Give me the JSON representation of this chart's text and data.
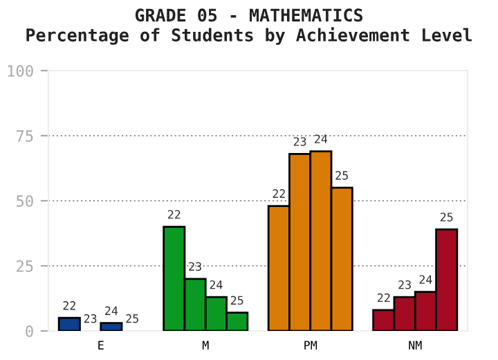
{
  "chart_data": {
    "type": "bar",
    "title": "GRADE 05 - MATHEMATICS",
    "subtitle": "Percentage of Students by Achievement Level",
    "categories": [
      "E",
      "M",
      "PM",
      "NM"
    ],
    "series": [
      {
        "name": "22",
        "colors": [
          "#0d3f8c",
          "#0a9a23",
          "#d97c07",
          "#a50a23"
        ],
        "values": [
          5,
          40,
          48,
          8
        ]
      },
      {
        "name": "23",
        "colors": [
          "#0d3f8c",
          "#0a9a23",
          "#d97c07",
          "#a50a23"
        ],
        "values": [
          0,
          20,
          68,
          13
        ]
      },
      {
        "name": "24",
        "colors": [
          "#0d3f8c",
          "#0a9a23",
          "#d97c07",
          "#a50a23"
        ],
        "values": [
          3,
          13,
          69,
          15
        ]
      },
      {
        "name": "25",
        "colors": [
          "#0d3f8c",
          "#0a9a23",
          "#d97c07",
          "#a50a23"
        ],
        "values": [
          0,
          7,
          55,
          39
        ]
      }
    ],
    "ylim": [
      0,
      100
    ],
    "yticks": [
      0,
      25,
      50,
      75,
      100
    ],
    "grid": "y",
    "legend": false
  }
}
